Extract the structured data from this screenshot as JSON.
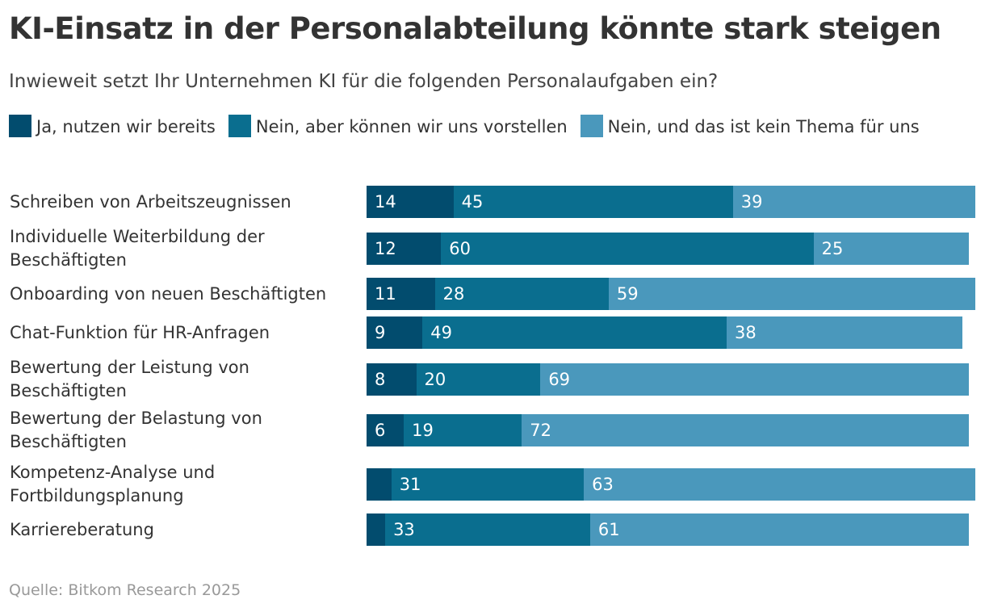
{
  "chart_data": {
    "type": "bar",
    "orientation": "horizontal",
    "stacked": true,
    "title": "KI-Einsatz in der Personalabteilung könnte stark steigen",
    "subtitle": "Inwieweit setzt Ihr Unternehmen KI für die folgenden Personalaufgaben ein?",
    "source": "Quelle: Bitkom Research 2025",
    "legend_position": "top",
    "categories": [
      "Schreiben von Arbeitszeugnissen",
      "Individuelle Weiterbildung der Beschäftigten",
      "Onboarding von neuen Beschäftigten",
      "Chat-Funktion für HR-Anfragen",
      "Bewertung der Leistung von Beschäftigten",
      "Bewertung der Belastung von Beschäftigten",
      "Kompetenz-Analyse und Fortbildungsplanung",
      "Karriereberatung"
    ],
    "series": [
      {
        "name": "Ja, nutzen wir bereits",
        "color": "#024c6e",
        "values": [
          14,
          12,
          11,
          9,
          8,
          6,
          4,
          3
        ],
        "labels_shown": [
          true,
          true,
          true,
          true,
          true,
          true,
          false,
          false
        ]
      },
      {
        "name": "Nein, aber können wir uns vorstellen",
        "color": "#0a6e8f",
        "values": [
          45,
          60,
          28,
          49,
          20,
          19,
          31,
          33
        ],
        "labels_shown": [
          true,
          true,
          true,
          true,
          true,
          true,
          true,
          true
        ]
      },
      {
        "name": "Nein, und das ist kein Thema für uns",
        "color": "#4a98bc",
        "values": [
          39,
          25,
          59,
          38,
          69,
          72,
          63,
          61
        ],
        "labels_shown": [
          true,
          true,
          true,
          true,
          true,
          true,
          true,
          true
        ]
      }
    ],
    "xlim": [
      0,
      100
    ]
  }
}
